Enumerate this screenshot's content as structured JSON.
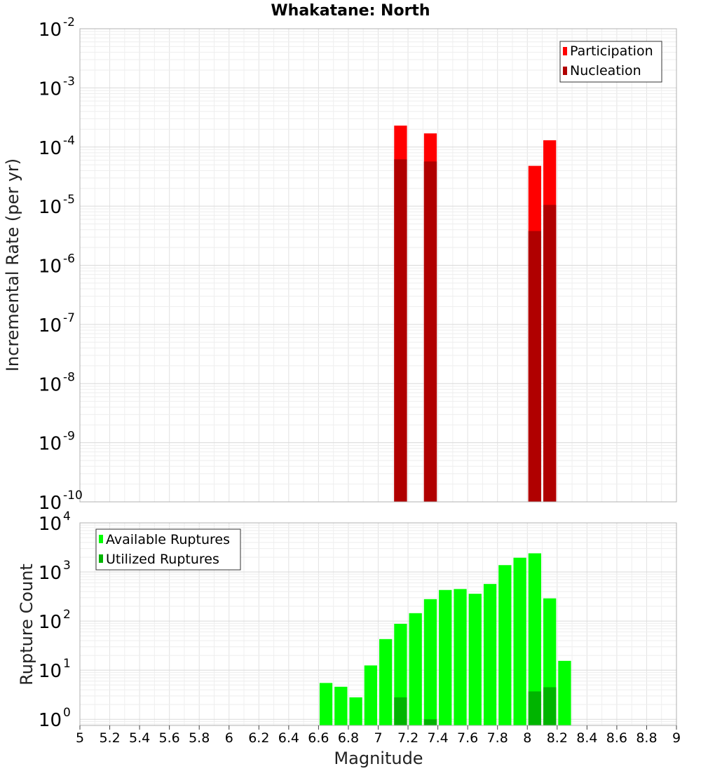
{
  "chart_data": [
    {
      "type": "bar",
      "title": "Whakatane: North",
      "ylabel": "Incremental Rate (per yr)",
      "yscale": "log",
      "ylim": [
        1e-10,
        0.01
      ],
      "xlim": [
        5,
        9
      ],
      "y_ticks": [
        {
          "base": "10",
          "exp": "-2",
          "value": 0.01
        },
        {
          "base": "10",
          "exp": "-3",
          "value": 0.001
        },
        {
          "base": "10",
          "exp": "-4",
          "value": 0.0001
        },
        {
          "base": "10",
          "exp": "-5",
          "value": 1e-05
        },
        {
          "base": "10",
          "exp": "-6",
          "value": 1e-06
        },
        {
          "base": "10",
          "exp": "-7",
          "value": 1e-07
        },
        {
          "base": "10",
          "exp": "-8",
          "value": 1e-08
        },
        {
          "base": "10",
          "exp": "-9",
          "value": 1e-09
        },
        {
          "base": "10",
          "exp": "-10",
          "value": 1e-10
        }
      ],
      "legend_position": "top-right",
      "grid": true,
      "series": [
        {
          "name": "Participation",
          "color": "#ff0000",
          "x": [
            7.15,
            7.35,
            8.05,
            8.15
          ],
          "values": [
            0.00023,
            0.00017,
            4.8e-05,
            0.00013
          ]
        },
        {
          "name": "Nucleation",
          "color": "#b00000",
          "x": [
            7.15,
            7.35,
            8.05,
            8.15
          ],
          "values": [
            6.2e-05,
            5.7e-05,
            3.8e-06,
            1.05e-05
          ]
        }
      ]
    },
    {
      "type": "bar",
      "xlabel": "Magnitude",
      "ylabel": "Rupture Count",
      "yscale": "log",
      "ylim": [
        0.75,
        10000
      ],
      "xlim": [
        5,
        9
      ],
      "y_ticks": [
        {
          "base": "10",
          "exp": "4",
          "value": 10000
        },
        {
          "base": "10",
          "exp": "3",
          "value": 1000
        },
        {
          "base": "10",
          "exp": "2",
          "value": 100
        },
        {
          "base": "10",
          "exp": "1",
          "value": 10
        },
        {
          "base": "10",
          "exp": "0",
          "value": 1
        }
      ],
      "x_ticks": [
        "5",
        "5.2",
        "5.4",
        "5.6",
        "5.8",
        "6",
        "6.2",
        "6.4",
        "6.6",
        "6.8",
        "7",
        "7.2",
        "7.4",
        "7.6",
        "7.8",
        "8",
        "8.2",
        "8.4",
        "8.6",
        "8.8",
        "9"
      ],
      "legend_position": "top-left",
      "grid": true,
      "series": [
        {
          "name": "Available Ruptures",
          "color": "#00ff00",
          "x": [
            6.65,
            6.75,
            6.85,
            6.95,
            7.05,
            7.15,
            7.25,
            7.35,
            7.45,
            7.55,
            7.65,
            7.75,
            7.85,
            7.95,
            8.05,
            8.15,
            8.25
          ],
          "values": [
            5.5,
            4.6,
            2.8,
            12.5,
            43,
            88,
            145,
            280,
            430,
            450,
            360,
            570,
            1380,
            1950,
            2400,
            290,
            15.5
          ]
        },
        {
          "name": "Utilized Ruptures",
          "color": "#00b400",
          "x": [
            7.15,
            7.35,
            8.05,
            8.15
          ],
          "values": [
            2.8,
            1,
            3.7,
            4.5
          ]
        }
      ]
    }
  ]
}
